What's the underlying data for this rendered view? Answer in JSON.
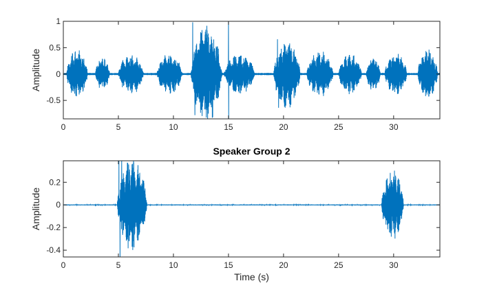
{
  "chart_data": [
    {
      "type": "line",
      "title": "",
      "xlabel": "",
      "ylabel": "Amplitude",
      "xlim": [
        0,
        34.2
      ],
      "ylim": [
        -0.85,
        1
      ],
      "xticks": [
        0,
        5,
        10,
        15,
        20,
        25,
        30
      ],
      "yticks": [
        -0.5,
        0,
        0.5,
        1
      ],
      "ytick_labels": [
        "-0.5",
        "0",
        "0.5",
        "1"
      ],
      "grid": false,
      "line_color": "#0072BD",
      "segments": [
        {
          "start": 0.3,
          "end": 2.2,
          "amp": 0.48
        },
        {
          "start": 2.9,
          "end": 4.2,
          "amp": 0.32
        },
        {
          "start": 5.0,
          "end": 7.3,
          "amp": 0.4
        },
        {
          "start": 8.5,
          "end": 10.8,
          "amp": 0.4
        },
        {
          "start": 11.6,
          "end": 14.4,
          "amp": 0.95
        },
        {
          "start": 14.6,
          "end": 17.4,
          "amp": 0.4
        },
        {
          "start": 19.1,
          "end": 21.5,
          "amp": 0.68
        },
        {
          "start": 22.1,
          "end": 24.5,
          "amp": 0.45
        },
        {
          "start": 25.0,
          "end": 27.1,
          "amp": 0.4
        },
        {
          "start": 27.5,
          "end": 28.8,
          "amp": 0.34
        },
        {
          "start": 29.2,
          "end": 31.2,
          "amp": 0.42
        },
        {
          "start": 32.2,
          "end": 34.0,
          "amp": 0.5
        }
      ],
      "spikes": [
        {
          "x": 11.75,
          "y": 0.98
        },
        {
          "x": 11.95,
          "y": -0.78
        },
        {
          "x": 15.0,
          "y": 1.0
        },
        {
          "x": 15.02,
          "y": -0.85
        },
        {
          "x": 19.45,
          "y": 0.66
        },
        {
          "x": 19.55,
          "y": -0.64
        }
      ]
    },
    {
      "type": "line",
      "title": "Speaker Group 2",
      "xlabel": "Time (s)",
      "ylabel": "Amplitude",
      "xlim": [
        0,
        34.2
      ],
      "ylim": [
        -0.46,
        0.39
      ],
      "xticks": [
        0,
        5,
        10,
        15,
        20,
        25,
        30
      ],
      "yticks": [
        -0.4,
        -0.2,
        0,
        0.2
      ],
      "ytick_labels": [
        "-0.4",
        "-0.2",
        "0",
        "0.2"
      ],
      "grid": false,
      "line_color": "#0072BD",
      "segments": [
        {
          "start": 4.9,
          "end": 7.6,
          "amp": 0.42
        },
        {
          "start": 28.9,
          "end": 30.9,
          "amp": 0.32
        }
      ],
      "spikes": [
        {
          "x": 5.05,
          "y": 0.39
        },
        {
          "x": 5.15,
          "y": -0.46
        },
        {
          "x": 5.3,
          "y": 0.39
        }
      ]
    }
  ]
}
